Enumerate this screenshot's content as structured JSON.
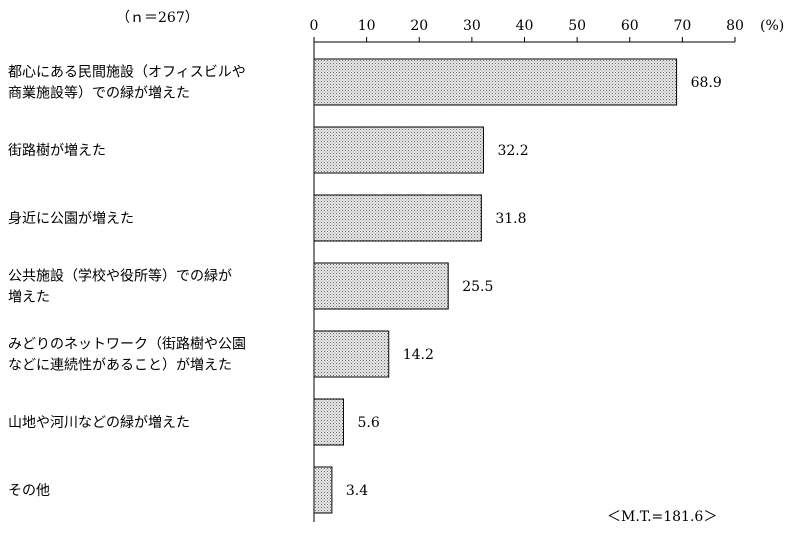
{
  "chart_data": {
    "type": "bar",
    "orientation": "horizontal",
    "sample_note": "（ｎ＝267）",
    "unit": "(%)",
    "footnote": "＜M.T.=181.6＞",
    "xlim": [
      0,
      80
    ],
    "xticks": [
      "0",
      "10",
      "20",
      "30",
      "40",
      "50",
      "60",
      "70",
      "80"
    ],
    "categories": [
      [
        "都心にある民間施設（オフィスビルや",
        "商業施設等）での緑が増えた"
      ],
      [
        "街路樹が増えた"
      ],
      [
        "身近に公園が増えた"
      ],
      [
        "公共施設（学校や役所等）での緑が",
        "増えた"
      ],
      [
        "みどりのネットワーク（街路樹や公園",
        "などに連続性があること）が増えた"
      ],
      [
        "山地や河川などの緑が増えた"
      ],
      [
        "その他"
      ]
    ],
    "values": [
      68.9,
      32.2,
      31.8,
      25.5,
      14.2,
      5.6,
      3.4
    ],
    "value_labels": [
      "68.9",
      "32.2",
      "31.8",
      "25.5",
      "14.2",
      "5.6",
      "3.4"
    ],
    "bar_fill": "#d4d4d4",
    "bar_stroke": "#000000"
  }
}
